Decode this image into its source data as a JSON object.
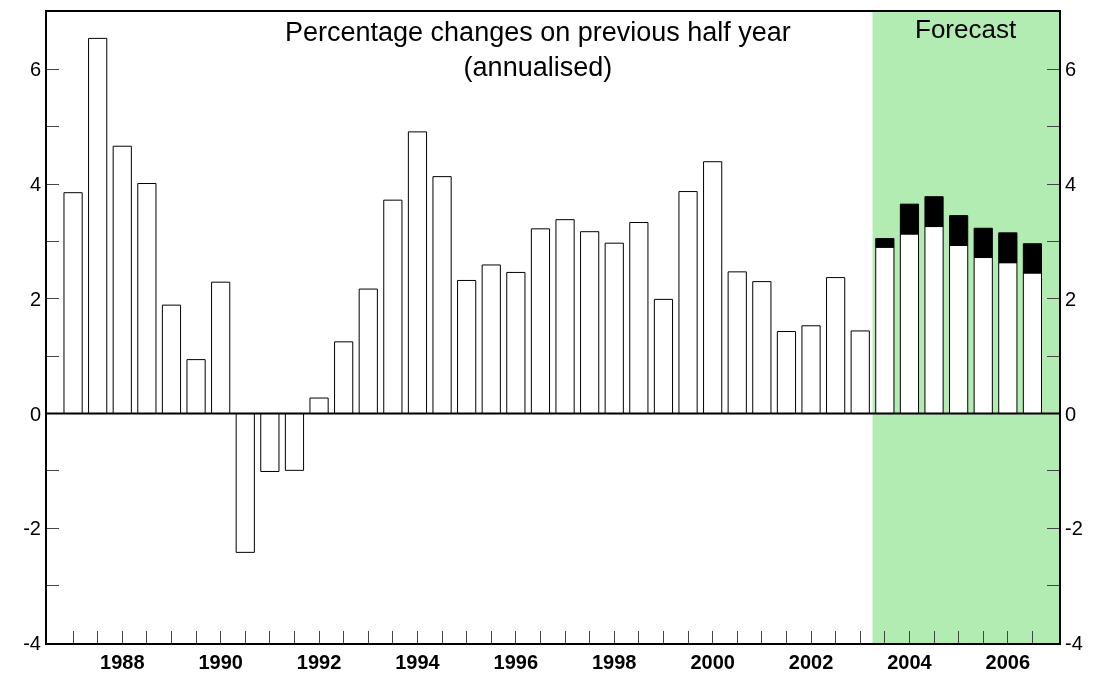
{
  "chart_data": {
    "type": "bar",
    "title": "Percentage changes on previous half year\n(annualised)",
    "x": [
      1987.0,
      1987.5,
      1988.0,
      1988.5,
      1989.0,
      1989.5,
      1990.0,
      1990.5,
      1991.0,
      1991.5,
      1992.0,
      1992.5,
      1993.0,
      1993.5,
      1994.0,
      1994.5,
      1995.0,
      1995.5,
      1996.0,
      1996.5,
      1997.0,
      1997.5,
      1998.0,
      1998.5,
      1999.0,
      1999.5,
      2000.0,
      2000.5,
      2001.0,
      2001.5,
      2002.0,
      2002.5,
      2003.0,
      2003.5,
      2004.0,
      2004.5,
      2005.0,
      2005.5,
      2006.0,
      2006.5
    ],
    "stacked": true,
    "series": [
      {
        "color": "#ffffff",
        "values": [
          3.85,
          6.54,
          4.66,
          4.01,
          1.89,
          0.94,
          2.29,
          -2.42,
          -1.01,
          -0.99,
          0.27,
          1.25,
          2.17,
          3.72,
          4.91,
          4.13,
          2.32,
          2.59,
          2.46,
          3.22,
          3.38,
          3.17,
          2.97,
          3.33,
          1.99,
          3.87,
          4.39,
          2.47,
          2.3,
          1.43,
          1.53,
          2.37,
          1.44,
          2.9,
          3.13,
          3.26,
          2.93,
          2.72,
          2.63,
          2.45
        ]
      },
      {
        "color": "#000000",
        "values": [
          null,
          null,
          null,
          null,
          null,
          null,
          null,
          null,
          null,
          null,
          null,
          null,
          null,
          null,
          null,
          null,
          null,
          null,
          null,
          null,
          null,
          null,
          null,
          null,
          null,
          null,
          null,
          null,
          null,
          null,
          null,
          null,
          null,
          0.15,
          0.52,
          0.52,
          0.52,
          0.51,
          0.52,
          0.51
        ]
      }
    ],
    "xlim": [
      1986.47,
      2007.04
    ],
    "xticks": [
      {
        "value": 1987,
        "label": null
      },
      {
        "value": 1987.5,
        "label": null
      },
      1988,
      {
        "value": 1988.5,
        "label": null
      },
      {
        "value": 1989,
        "label": null
      },
      {
        "value": 1989.5,
        "label": null
      },
      1990,
      {
        "value": 1990.5,
        "label": null
      },
      {
        "value": 1991,
        "label": null
      },
      {
        "value": 1991.5,
        "label": null
      },
      1992,
      {
        "value": 1992.5,
        "label": null
      },
      {
        "value": 1993,
        "label": null
      },
      {
        "value": 1993.5,
        "label": null
      },
      1994,
      {
        "value": 1994.5,
        "label": null
      },
      {
        "value": 1995,
        "label": null
      },
      {
        "value": 1995.5,
        "label": null
      },
      1996,
      {
        "value": 1996.5,
        "label": null
      },
      {
        "value": 1997,
        "label": null
      },
      {
        "value": 1997.5,
        "label": null
      },
      1998,
      {
        "value": 1998.5,
        "label": null
      },
      {
        "value": 1999,
        "label": null
      },
      {
        "value": 1999.5,
        "label": null
      },
      2000,
      {
        "value": 2000.5,
        "label": null
      },
      {
        "value": 2001,
        "label": null
      },
      {
        "value": 2001.5,
        "label": null
      },
      2002,
      {
        "value": 2002.5,
        "label": null
      },
      {
        "value": 2003,
        "label": null
      },
      {
        "value": 2003.5,
        "label": null
      },
      2004,
      {
        "value": 2004.5,
        "label": null
      },
      {
        "value": 2005,
        "label": null
      },
      {
        "value": 2005.5,
        "label": null
      },
      2006,
      {
        "value": 2006.5,
        "label": null
      }
    ],
    "ylim": [
      -4,
      7
    ],
    "yticks": [
      -4,
      {
        "value": -3,
        "label": null
      },
      -2,
      {
        "value": -1,
        "label": null
      },
      0,
      {
        "value": 1,
        "label": null
      },
      2,
      {
        "value": 3,
        "label": null
      },
      4,
      {
        "value": 5,
        "label": null
      },
      6
    ],
    "y2lim": [
      -4,
      7
    ],
    "y2ticks": [
      -4,
      {
        "value": -3,
        "label": null
      },
      -2,
      {
        "value": -1,
        "label": null
      },
      0,
      {
        "value": 1,
        "label": null
      },
      2,
      {
        "value": 3,
        "label": null
      },
      4,
      {
        "value": 5,
        "label": null
      },
      6
    ],
    "bands": [
      {
        "axis": "x",
        "from": 2003.25,
        "to": 2007.04,
        "label": "Forecast",
        "color": "#b3ecb3"
      }
    ],
    "ref_lines": [
      {
        "axis": "y",
        "value": 0,
        "color": "#000000",
        "line_style": "solid"
      }
    ],
    "grid": false
  }
}
